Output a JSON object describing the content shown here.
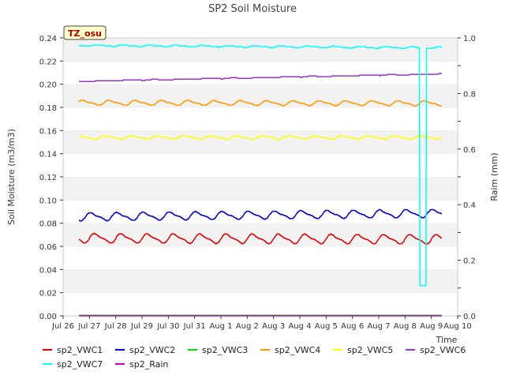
{
  "chart_data": {
    "type": "line",
    "title": "SP2 Soil Moisture",
    "xlabel": "Time",
    "ylabel": "Soil Moisture (m3/m3)",
    "y2label": "Raim (mm)",
    "annotation": "TZ_osu",
    "ylim": [
      0,
      0.24
    ],
    "y2lim": [
      0,
      1.0
    ],
    "xlim_days": [
      0,
      15
    ],
    "y_ticks": [
      "0.00",
      "0.02",
      "0.04",
      "0.06",
      "0.08",
      "0.10",
      "0.12",
      "0.14",
      "0.16",
      "0.18",
      "0.20",
      "0.22",
      "0.24"
    ],
    "y2_ticks": [
      "0.0",
      "0.2",
      "0.4",
      "0.6",
      "0.8",
      "1.0"
    ],
    "x_ticks": [
      "Jul 26",
      "Jul 27",
      "Jul 28",
      "Jul 29",
      "Jul 30",
      "Jul 31",
      "Aug 1",
      "Aug 2",
      "Aug 3",
      "Aug 4",
      "Aug 5",
      "Aug 6",
      "Aug 7",
      "Aug 8",
      "Aug 9",
      "Aug 10"
    ],
    "grid": "horizontal bands",
    "legend_position": "bottom",
    "series": [
      {
        "name": "sp2_VWC1",
        "color": "#dd0000",
        "axis": "left",
        "x_start": 0.6,
        "x_end": 14.4,
        "base": 0.067,
        "amp": 0.0035,
        "trend": -0.001,
        "spike_day": null,
        "spike_value": null
      },
      {
        "name": "sp2_VWC2",
        "color": "#0000cc",
        "axis": "left",
        "x_start": 0.6,
        "x_end": 14.4,
        "base": 0.0855,
        "amp": 0.003,
        "trend": 0.003,
        "spike_day": null,
        "spike_value": null
      },
      {
        "name": "sp2_VWC3",
        "color": "#00dd00",
        "axis": "left",
        "x_start": 0.6,
        "x_end": 14.4,
        "base": 0.0005,
        "amp": 0,
        "trend": 0,
        "spike_day": null,
        "spike_value": null
      },
      {
        "name": "sp2_VWC4",
        "color": "#ff9900",
        "axis": "left",
        "x_start": 0.6,
        "x_end": 14.4,
        "base": 0.184,
        "amp": 0.0018,
        "trend": -0.0005,
        "spike_day": null,
        "spike_value": null
      },
      {
        "name": "sp2_VWC5",
        "color": "#ffff00",
        "axis": "left",
        "x_start": 0.6,
        "x_end": 14.4,
        "base": 0.154,
        "amp": 0.0012,
        "trend": 0,
        "spike_day": null,
        "spike_value": null
      },
      {
        "name": "sp2_VWC6",
        "color": "#9933cc",
        "axis": "left",
        "x_start": 0.6,
        "x_end": 14.4,
        "base": 0.2025,
        "amp": 0.0003,
        "trend": 0.0065,
        "spike_day": null,
        "spike_value": null
      },
      {
        "name": "sp2_VWC7",
        "color": "#00ffff",
        "axis": "left",
        "x_start": 0.6,
        "x_end": 14.4,
        "base": 0.2335,
        "amp": 0.0006,
        "trend": -0.002,
        "spike_day": 13.68,
        "spike_value": 0.026
      },
      {
        "name": "sp2_Rain",
        "color": "#cc00cc",
        "axis": "right",
        "x_start": 0.6,
        "x_end": 14.4,
        "base": 0,
        "amp": 0,
        "trend": 0,
        "spike_day": null,
        "spike_value": null
      }
    ]
  }
}
